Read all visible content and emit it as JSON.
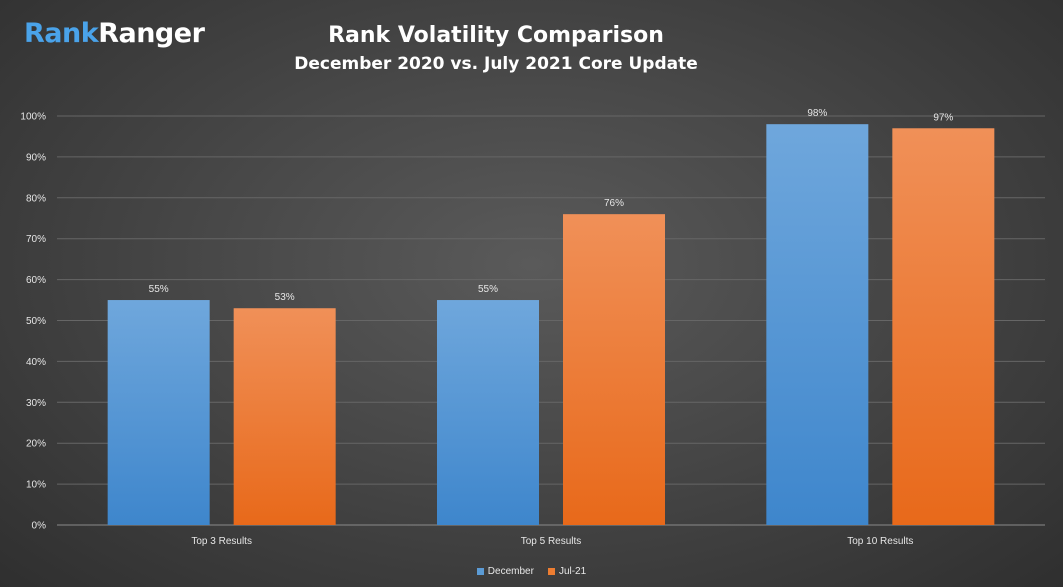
{
  "logo": {
    "part1": "Rank",
    "part2": "Ranger"
  },
  "chart_data": {
    "type": "bar",
    "title": "Rank Volatility Comparison",
    "subtitle": "December 2020 vs. July 2021 Core Update",
    "categories": [
      "Top 3 Results",
      "Top 5 Results",
      "Top 10 Results"
    ],
    "series": [
      {
        "name": "December",
        "values": [
          55,
          55,
          98
        ],
        "labels": [
          "55%",
          "55%",
          "98%"
        ],
        "color": "#5b9bd5"
      },
      {
        "name": "Jul-21",
        "values": [
          53,
          76,
          97
        ],
        "labels": [
          "53%",
          "76%",
          "97%"
        ],
        "color": "#ed7d31"
      }
    ],
    "ylim": [
      0,
      100
    ],
    "yticks": [
      "0%",
      "10%",
      "20%",
      "30%",
      "40%",
      "50%",
      "60%",
      "70%",
      "80%",
      "90%",
      "100%"
    ],
    "grid": true,
    "legend": "bottom"
  }
}
